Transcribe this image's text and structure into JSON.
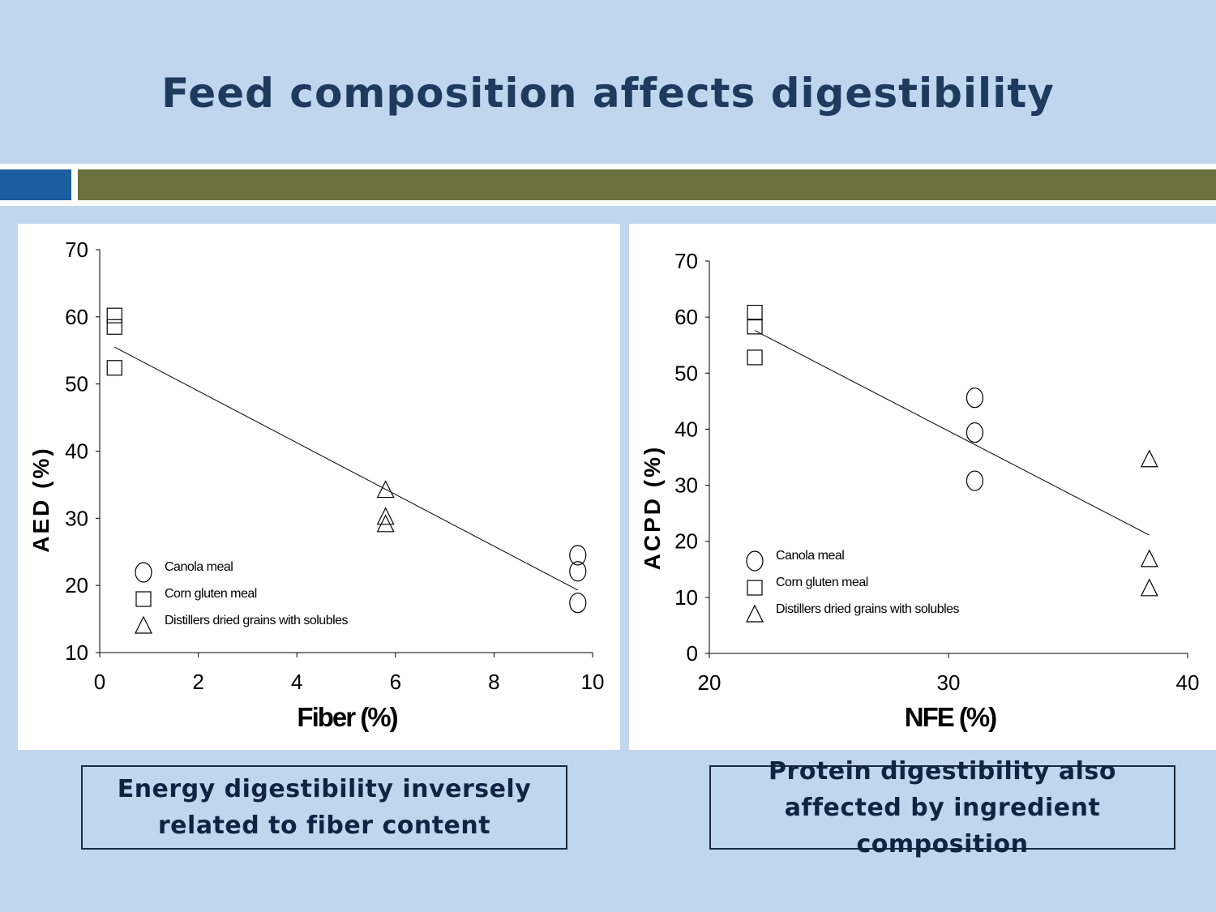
{
  "slide": {
    "title": "Feed composition affects digestibility",
    "notes": [
      "Energy digestibility inversely related to fiber content",
      "Protein digestibility also affected by ingredient composition"
    ],
    "colors": {
      "background": "#c0d6ee",
      "title": "#1e3a5e",
      "accent_blue": "#1a5e9f",
      "accent_olive": "#6a713d"
    }
  },
  "chart_data": [
    {
      "type": "scatter",
      "xlabel": "Fiber (%)",
      "ylabel": "AED (%)",
      "xlim": [
        0,
        10
      ],
      "ylim": [
        10,
        70
      ],
      "xticks": [
        0,
        2,
        4,
        6,
        8,
        10
      ],
      "yticks": [
        10,
        20,
        30,
        40,
        50,
        60,
        70
      ],
      "grid": false,
      "legend_placement": "bottom-left",
      "series": [
        {
          "name": "Canola meal",
          "marker": "circle",
          "x": [
            9.7,
            9.7,
            9.7
          ],
          "y": [
            24.5,
            22.1,
            17.4
          ]
        },
        {
          "name": "Corn gluten meal",
          "marker": "square",
          "x": [
            0.3,
            0.3,
            0.3
          ],
          "y": [
            60.2,
            58.5,
            52.4
          ]
        },
        {
          "name": "Distillers dried grains with solubles",
          "marker": "triangle",
          "x": [
            5.8,
            5.8,
            5.8
          ],
          "y": [
            34.2,
            30.2,
            29.1
          ]
        }
      ],
      "trendline": {
        "x": [
          0.3,
          9.7
        ],
        "y": [
          55.5,
          19.3
        ]
      }
    },
    {
      "type": "scatter",
      "xlabel": "NFE (%)",
      "ylabel": "ACPD (%)",
      "xlim": [
        20,
        40
      ],
      "ylim": [
        0,
        70
      ],
      "xticks": [
        20,
        30,
        40
      ],
      "yticks": [
        0,
        10,
        20,
        30,
        40,
        50,
        60,
        70
      ],
      "grid": false,
      "legend_placement": "bottom-left",
      "series": [
        {
          "name": "Canola meal",
          "marker": "circle",
          "x": [
            31.1,
            31.1,
            31.1
          ],
          "y": [
            45.6,
            39.4,
            30.8
          ]
        },
        {
          "name": "Corn gluten meal",
          "marker": "square",
          "x": [
            21.9,
            21.9,
            21.9
          ],
          "y": [
            60.8,
            58.3,
            52.8
          ]
        },
        {
          "name": "Distillers dried grains with solubles",
          "marker": "triangle",
          "x": [
            38.4,
            38.4,
            38.4
          ],
          "y": [
            34.6,
            16.8,
            11.6
          ]
        }
      ],
      "trendline": {
        "x": [
          21.9,
          38.4
        ],
        "y": [
          57.6,
          21.1
        ]
      }
    }
  ]
}
